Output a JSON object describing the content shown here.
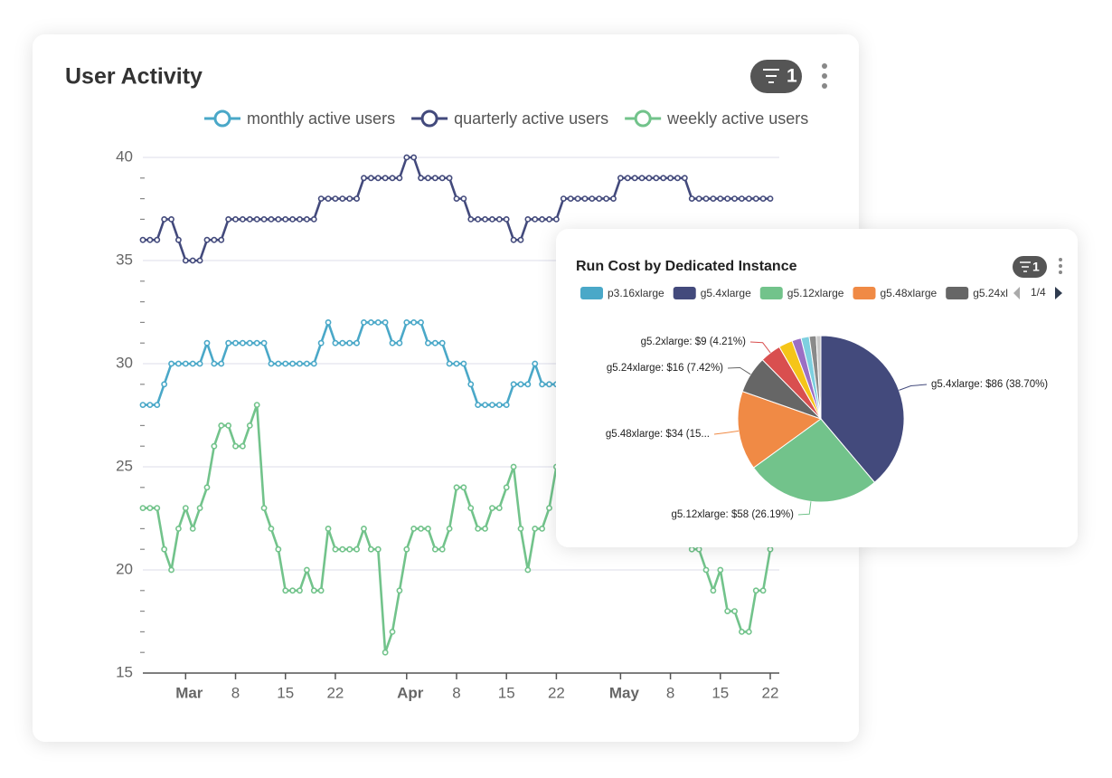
{
  "chart_data": [
    {
      "type": "line",
      "title": "User Activity",
      "filter_count": 1,
      "x": [
        "02-24",
        "02-25",
        "02-26",
        "02-27",
        "02-28",
        "02-29",
        "03-01",
        "03-02",
        "03-03",
        "03-04",
        "03-05",
        "03-06",
        "03-07",
        "03-08",
        "03-09",
        "03-10",
        "03-11",
        "03-12",
        "03-13",
        "03-14",
        "03-15",
        "03-16",
        "03-17",
        "03-18",
        "03-19",
        "03-20",
        "03-21",
        "03-22",
        "03-23",
        "03-24",
        "03-25",
        "03-26",
        "03-27",
        "03-28",
        "03-29",
        "03-30",
        "03-31",
        "04-01",
        "04-02",
        "04-03",
        "04-04",
        "04-05",
        "04-06",
        "04-07",
        "04-08",
        "04-09",
        "04-10",
        "04-11",
        "04-12",
        "04-13",
        "04-14",
        "04-15",
        "04-16",
        "04-17",
        "04-18",
        "04-19",
        "04-20",
        "04-21",
        "04-22",
        "04-23",
        "04-24",
        "04-25",
        "04-26",
        "04-27",
        "04-28",
        "04-29",
        "04-30",
        "05-01",
        "05-02",
        "05-03",
        "05-04",
        "05-05",
        "05-06",
        "05-07",
        "05-08",
        "05-09",
        "05-10",
        "05-11",
        "05-12",
        "05-13",
        "05-14",
        "05-15",
        "05-16",
        "05-17",
        "05-18",
        "05-19",
        "05-20",
        "05-21",
        "05-22"
      ],
      "xlim": [
        "02-24",
        "05-22"
      ],
      "xticks": [
        {
          "value": "03-01",
          "label": "Mar"
        },
        {
          "value": "03-08",
          "label": "8"
        },
        {
          "value": "03-15",
          "label": "15"
        },
        {
          "value": "03-22",
          "label": "22"
        },
        {
          "value": "04-01",
          "label": "Apr"
        },
        {
          "value": "04-08",
          "label": "8"
        },
        {
          "value": "04-15",
          "label": "15"
        },
        {
          "value": "04-22",
          "label": "22"
        },
        {
          "value": "05-01",
          "label": "May"
        },
        {
          "value": "05-08",
          "label": "8"
        },
        {
          "value": "05-15",
          "label": "15"
        },
        {
          "value": "05-22",
          "label": "22"
        }
      ],
      "ylim": [
        15,
        40
      ],
      "yticks": [
        15,
        20,
        25,
        30,
        35,
        40
      ],
      "yminorticks": [
        16,
        17,
        18,
        19,
        21,
        22,
        23,
        24,
        26,
        27,
        28,
        29,
        31,
        32,
        33,
        34,
        36,
        37,
        38,
        39
      ],
      "grid": true,
      "series": [
        {
          "name": "monthly active users",
          "color": "#4aa8c8",
          "values": [
            28,
            28,
            28,
            29,
            30,
            30,
            30,
            30,
            30,
            31,
            30,
            30,
            31,
            31,
            31,
            31,
            31,
            31,
            30,
            30,
            30,
            30,
            30,
            30,
            30,
            31,
            32,
            31,
            31,
            31,
            31,
            32,
            32,
            32,
            32,
            31,
            31,
            32,
            32,
            32,
            31,
            31,
            31,
            30,
            30,
            30,
            29,
            28,
            28,
            28,
            28,
            28,
            29,
            29,
            29,
            30,
            29,
            29,
            29,
            null,
            null,
            null,
            null,
            null,
            null,
            null,
            null,
            null,
            null,
            null,
            null,
            null,
            null,
            null,
            null,
            null,
            null,
            null,
            null,
            null,
            null,
            null,
            null,
            null,
            null,
            null,
            null,
            null,
            null
          ]
        },
        {
          "name": "quarterly active users",
          "color": "#434a7c",
          "values": [
            36,
            36,
            36,
            37,
            37,
            36,
            35,
            35,
            35,
            36,
            36,
            36,
            37,
            37,
            37,
            37,
            37,
            37,
            37,
            37,
            37,
            37,
            37,
            37,
            37,
            38,
            38,
            38,
            38,
            38,
            38,
            39,
            39,
            39,
            39,
            39,
            39,
            40,
            40,
            39,
            39,
            39,
            39,
            39,
            38,
            38,
            37,
            37,
            37,
            37,
            37,
            37,
            36,
            36,
            37,
            37,
            37,
            37,
            37,
            38,
            38,
            38,
            38,
            38,
            38,
            38,
            38,
            39,
            39,
            39,
            39,
            39,
            39,
            39,
            39,
            39,
            39,
            38,
            38,
            38,
            38,
            38,
            38,
            38,
            38,
            38,
            38,
            38,
            38
          ]
        },
        {
          "name": "weekly active users",
          "color": "#72c38b",
          "values": [
            23,
            23,
            23,
            21,
            20,
            22,
            23,
            22,
            23,
            24,
            26,
            27,
            27,
            26,
            26,
            27,
            28,
            23,
            22,
            21,
            19,
            19,
            19,
            20,
            19,
            19,
            22,
            21,
            21,
            21,
            21,
            22,
            21,
            21,
            16,
            17,
            19,
            21,
            22,
            22,
            22,
            21,
            21,
            22,
            24,
            24,
            23,
            22,
            22,
            23,
            23,
            24,
            25,
            22,
            20,
            22,
            22,
            23,
            25,
            null,
            null,
            null,
            null,
            null,
            null,
            null,
            null,
            null,
            null,
            null,
            null,
            null,
            null,
            null,
            null,
            null,
            null,
            21,
            21,
            20,
            19,
            20,
            18,
            18,
            17,
            17,
            19,
            19,
            21
          ]
        }
      ]
    },
    {
      "type": "pie",
      "title": "Run Cost by Dedicated Instance",
      "filter_count": 1,
      "legend_page": "1/4",
      "categories": [
        "p3.16xlarge",
        "g5.4xlarge",
        "g5.12xlarge",
        "g5.48xlarge",
        "g5.24xlarge",
        "g5.2xlarge",
        null,
        null,
        null,
        null,
        null
      ],
      "values": [
        0,
        86,
        58,
        34,
        16,
        9,
        6,
        4,
        3.5,
        3,
        2
      ],
      "value_labels": [
        null,
        "g5.4xlarge: $86 (38.70%)",
        "g5.12xlarge: $58 (26.19%)",
        "g5.48xlarge: $34 (15...",
        "g5.24xlarge: $16 (7.42%)",
        "g5.2xlarge: $9 (4.21%)",
        null,
        null,
        null,
        null,
        null
      ],
      "colors": [
        "#4aa8c8",
        "#434a7c",
        "#72c38b",
        "#f08a45",
        "#666666",
        "#d94f4f",
        "#f5c518",
        "#9b6fc4",
        "#7ed0e0",
        "#8a8a8a",
        "#c9c9c9"
      ]
    }
  ]
}
